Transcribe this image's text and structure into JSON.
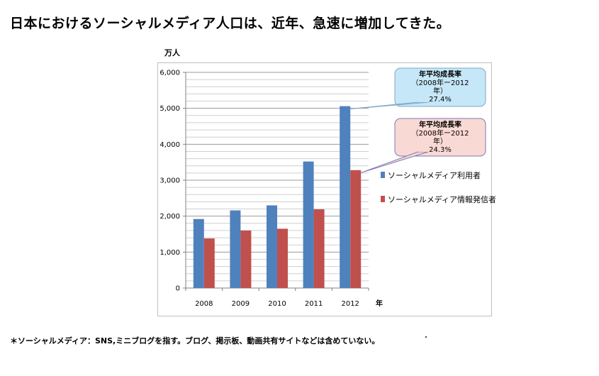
{
  "headline": "日本におけるソーシャルメディア人口は、近年、急速に増加してきた。",
  "footnote": "＊ソーシャルメディア：SNS,ミニブログを指す。ブログ、掲示板、動画共有サイトなどは含めていない。",
  "chart_data": {
    "type": "bar",
    "title": "",
    "ylabel": "万人",
    "xlabel": "年",
    "categories": [
      "2008",
      "2009",
      "2010",
      "2011",
      "2012"
    ],
    "ylim": [
      0,
      6000
    ],
    "yticks": [
      "0",
      "1,000",
      "2,000",
      "3,000",
      "4,000",
      "5,000",
      "6,000"
    ],
    "ytick_values": [
      0,
      1000,
      2000,
      3000,
      4000,
      5000,
      6000
    ],
    "grid": true,
    "legend_position": "right",
    "series": [
      {
        "name": "ソーシャルメディア利用者",
        "color": "#4f81bd",
        "values": [
          1920,
          2160,
          2300,
          3520,
          5060
        ]
      },
      {
        "name": "ソーシャルメディア情報発信者",
        "color": "#c0504d",
        "values": [
          1380,
          1600,
          1650,
          2190,
          3280
        ]
      }
    ],
    "annotations": [
      {
        "series": 0,
        "title": "年平均成長率",
        "lines": [
          "（2008年ー2012",
          "年）",
          "27.4%"
        ],
        "fill": "#c6e7f7",
        "stroke": "#7fa7c8"
      },
      {
        "series": 1,
        "title": "年平均成長率",
        "lines": [
          "（2008年ー2012",
          "年）",
          "24.3%"
        ],
        "fill": "#f9d9d3",
        "stroke": "#7a7ab8"
      }
    ]
  }
}
